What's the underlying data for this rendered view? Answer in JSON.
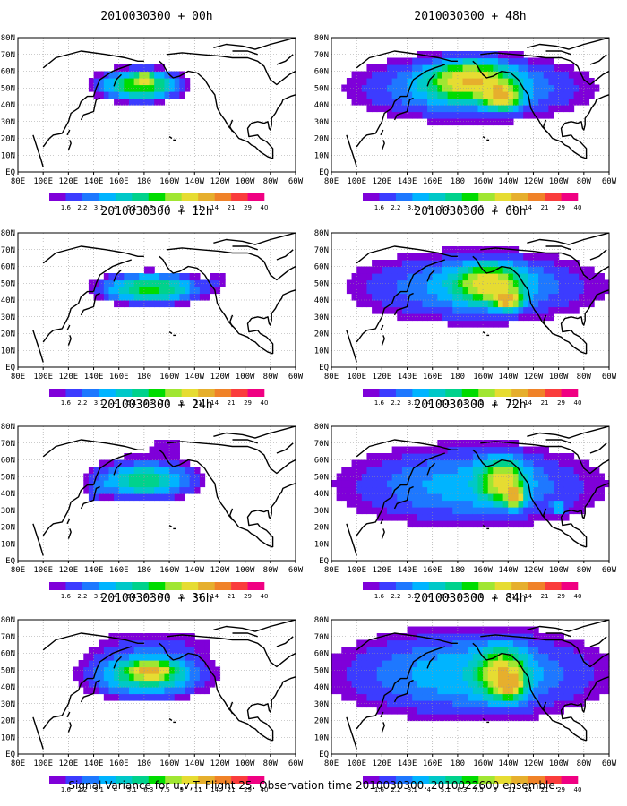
{
  "figure": {
    "caption": "Signal Variance for u,v,T. Flight 25. Observation time 2010030300. 2010022600 ensemble."
  },
  "palette": [
    "#7f00d9",
    "#3c3cff",
    "#1e78ff",
    "#00b4ff",
    "#00c8c8",
    "#00d28c",
    "#00dc00",
    "#a0e632",
    "#e6dc32",
    "#e6af2d",
    "#f08228",
    "#fa3c3c",
    "#f00082"
  ],
  "land_color": "#000000",
  "chart_data": [
    {
      "type": "heatmap",
      "title": "2010030300 + 00h",
      "x_ticks": [
        "80E",
        "100E",
        "120E",
        "140E",
        "160E",
        "180",
        "160W",
        "140W",
        "120W",
        "100W",
        "80W",
        "60W"
      ],
      "y_ticks": [
        "EQ",
        "10N",
        "20N",
        "30N",
        "40N",
        "50N",
        "60N",
        "70N",
        "80N"
      ],
      "xlim": [
        80,
        300
      ],
      "ylim": [
        0,
        80
      ],
      "colorbar": [
        "1.6",
        "2.2",
        "3.1",
        "4",
        "5.1",
        "6.3",
        "7.5",
        "9",
        "11",
        "14",
        "21",
        "29",
        "40"
      ],
      "blobs": [
        {
          "lon": 177,
          "lat": 52,
          "rlon": 40,
          "rlat": 11,
          "peak": 9
        },
        {
          "lon": 180,
          "lat": 56,
          "rlon": 7,
          "rlat": 3,
          "peak": 12
        }
      ]
    },
    {
      "type": "heatmap",
      "title": "2010030300 + 12h",
      "x_ticks": [
        "80E",
        "100E",
        "120E",
        "140E",
        "160E",
        "180",
        "160W",
        "140W",
        "120W",
        "100W",
        "80W",
        "60W"
      ],
      "y_ticks": [
        "EQ",
        "10N",
        "20N",
        "30N",
        "40N",
        "50N",
        "60N",
        "70N",
        "80N"
      ],
      "xlim": [
        80,
        300
      ],
      "ylim": [
        0,
        80
      ],
      "colorbar": [
        "1.6",
        "2.2",
        "3.1",
        "4",
        "5.1",
        "6.3",
        "7.5",
        "9",
        "11",
        "14",
        "21",
        "29",
        "40"
      ],
      "blobs": [
        {
          "lon": 185,
          "lat": 47,
          "rlon": 50,
          "rlat": 11,
          "peak": 8
        },
        {
          "lon": 225,
          "lat": 73,
          "rlon": 30,
          "rlat": 7,
          "peak": 1.5
        },
        {
          "lon": 240,
          "lat": 53,
          "rlon": 12,
          "rlat": 9,
          "peak": 1.4
        }
      ]
    },
    {
      "type": "heatmap",
      "title": "2010030300 + 24h",
      "x_ticks": [
        "80E",
        "100E",
        "120E",
        "140E",
        "160E",
        "180",
        "160W",
        "140W",
        "120W",
        "100W",
        "80W",
        "60W"
      ],
      "y_ticks": [
        "EQ",
        "10N",
        "20N",
        "30N",
        "40N",
        "50N",
        "60N",
        "70N",
        "80N"
      ],
      "xlim": [
        80,
        300
      ],
      "ylim": [
        0,
        80
      ],
      "colorbar": [
        "1.6",
        "2.2",
        "3.1",
        "4",
        "5.1",
        "6.3",
        "7.5",
        "9",
        "11",
        "14",
        "21",
        "29",
        "40"
      ],
      "blobs": [
        {
          "lon": 180,
          "lat": 48,
          "rlon": 52,
          "rlat": 14,
          "peak": 7
        },
        {
          "lon": 200,
          "lat": 70,
          "rlon": 55,
          "rlat": 11,
          "peak": 1.6
        },
        {
          "lon": 140,
          "lat": 40,
          "rlon": 8,
          "rlat": 8,
          "peak": 1.4
        }
      ]
    },
    {
      "type": "heatmap",
      "title": "2010030300 + 36h",
      "x_ticks": [
        "80E",
        "100E",
        "120E",
        "140E",
        "160E",
        "180",
        "160W",
        "140W",
        "120W",
        "100W",
        "80W",
        "60W"
      ],
      "y_ticks": [
        "EQ",
        "10N",
        "20N",
        "30N",
        "40N",
        "50N",
        "60N",
        "70N",
        "80N"
      ],
      "xlim": [
        80,
        300
      ],
      "ylim": [
        0,
        80
      ],
      "colorbar": [
        "1.6",
        "2.2",
        "3.1",
        "4",
        "5.1",
        "6.3",
        "7.5",
        "9",
        "11",
        "14",
        "21",
        "29",
        "40"
      ],
      "blobs": [
        {
          "lon": 182,
          "lat": 47,
          "rlon": 60,
          "rlat": 17,
          "peak": 7
        },
        {
          "lon": 190,
          "lat": 68,
          "rlon": 90,
          "rlat": 13,
          "peak": 1.8
        },
        {
          "lon": 185,
          "lat": 50,
          "rlon": 20,
          "rlat": 6,
          "peak": 10
        }
      ]
    },
    {
      "type": "heatmap",
      "title": "2010030300 + 48h",
      "x_ticks": [
        "80E",
        "100E",
        "120E",
        "140E",
        "160E",
        "180",
        "160W",
        "140W",
        "120W",
        "100W",
        "80W",
        "60W"
      ],
      "y_ticks": [
        "EQ",
        "10N",
        "20N",
        "30N",
        "40N",
        "50N",
        "60N",
        "70N",
        "80N"
      ],
      "xlim": [
        80,
        300
      ],
      "ylim": [
        0,
        80
      ],
      "colorbar": [
        "1.6",
        "2.2",
        "3.1",
        "4",
        "5.1",
        "6.3",
        "7.5",
        "9",
        "11",
        "14",
        "21",
        "29",
        "40"
      ],
      "blobs": [
        {
          "lon": 190,
          "lat": 50,
          "rlon": 120,
          "rlat": 25,
          "peak": 5
        },
        {
          "lon": 190,
          "lat": 55,
          "rlon": 35,
          "rlat": 12,
          "peak": 10
        },
        {
          "lon": 215,
          "lat": 45,
          "rlon": 15,
          "rlat": 8,
          "peak": 11
        }
      ]
    },
    {
      "type": "heatmap",
      "title": "2010030300 + 60h",
      "x_ticks": [
        "80E",
        "100E",
        "120E",
        "140E",
        "160E",
        "180",
        "160W",
        "140W",
        "120W",
        "100W",
        "80W",
        "60W"
      ],
      "y_ticks": [
        "EQ",
        "10N",
        "20N",
        "30N",
        "40N",
        "50N",
        "60N",
        "70N",
        "80N"
      ],
      "xlim": [
        80,
        300
      ],
      "ylim": [
        0,
        80
      ],
      "colorbar": [
        "1.6",
        "2.2",
        "3.1",
        "4",
        "5.1",
        "6.3",
        "7.5",
        "9",
        "11",
        "14",
        "21",
        "29",
        "40"
      ],
      "blobs": [
        {
          "lon": 195,
          "lat": 48,
          "rlon": 130,
          "rlat": 28,
          "peak": 4.5
        },
        {
          "lon": 205,
          "lat": 50,
          "rlon": 30,
          "rlat": 13,
          "peak": 9
        },
        {
          "lon": 220,
          "lat": 40,
          "rlon": 12,
          "rlat": 6,
          "peak": 11
        }
      ]
    },
    {
      "type": "heatmap",
      "title": "2010030300 + 72h",
      "x_ticks": [
        "80E",
        "100E",
        "120E",
        "140E",
        "160E",
        "180",
        "160W",
        "140W",
        "120W",
        "100W",
        "80W",
        "60W"
      ],
      "y_ticks": [
        "EQ",
        "10N",
        "20N",
        "30N",
        "40N",
        "50N",
        "60N",
        "70N",
        "80N"
      ],
      "xlim": [
        80,
        300
      ],
      "ylim": [
        0,
        80
      ],
      "colorbar": [
        "1.6",
        "2.2",
        "3.1",
        "4",
        "5.1",
        "6.3",
        "7.5",
        "9",
        "11",
        "14",
        "21",
        "29",
        "40"
      ],
      "blobs": [
        {
          "lon": 190,
          "lat": 45,
          "rlon": 135,
          "rlat": 32,
          "peak": 4.5
        },
        {
          "lon": 215,
          "lat": 48,
          "rlon": 20,
          "rlat": 14,
          "peak": 9
        },
        {
          "lon": 225,
          "lat": 38,
          "rlon": 8,
          "rlat": 7,
          "peak": 11
        },
        {
          "lon": 260,
          "lat": 32,
          "rlon": 7,
          "rlat": 5,
          "peak": 3.5
        }
      ]
    },
    {
      "type": "heatmap",
      "title": "2010030300 + 84h",
      "x_ticks": [
        "80E",
        "100E",
        "120E",
        "140E",
        "160E",
        "180",
        "160W",
        "140W",
        "120W",
        "100W",
        "80W",
        "60W"
      ],
      "y_ticks": [
        "EQ",
        "10N",
        "20N",
        "30N",
        "40N",
        "50N",
        "60N",
        "70N",
        "80N"
      ],
      "xlim": [
        80,
        300
      ],
      "ylim": [
        0,
        80
      ],
      "colorbar": [
        "1.6",
        "2.2",
        "3.1",
        "4",
        "5.1",
        "6.3",
        "7.5",
        "9",
        "11",
        "14",
        "21",
        "29",
        "40"
      ],
      "blobs": [
        {
          "lon": 190,
          "lat": 48,
          "rlon": 140,
          "rlat": 35,
          "peak": 4.8
        },
        {
          "lon": 215,
          "lat": 48,
          "rlon": 22,
          "rlat": 17,
          "peak": 9
        },
        {
          "lon": 222,
          "lat": 42,
          "rlon": 10,
          "rlat": 8,
          "peak": 10
        }
      ]
    }
  ]
}
